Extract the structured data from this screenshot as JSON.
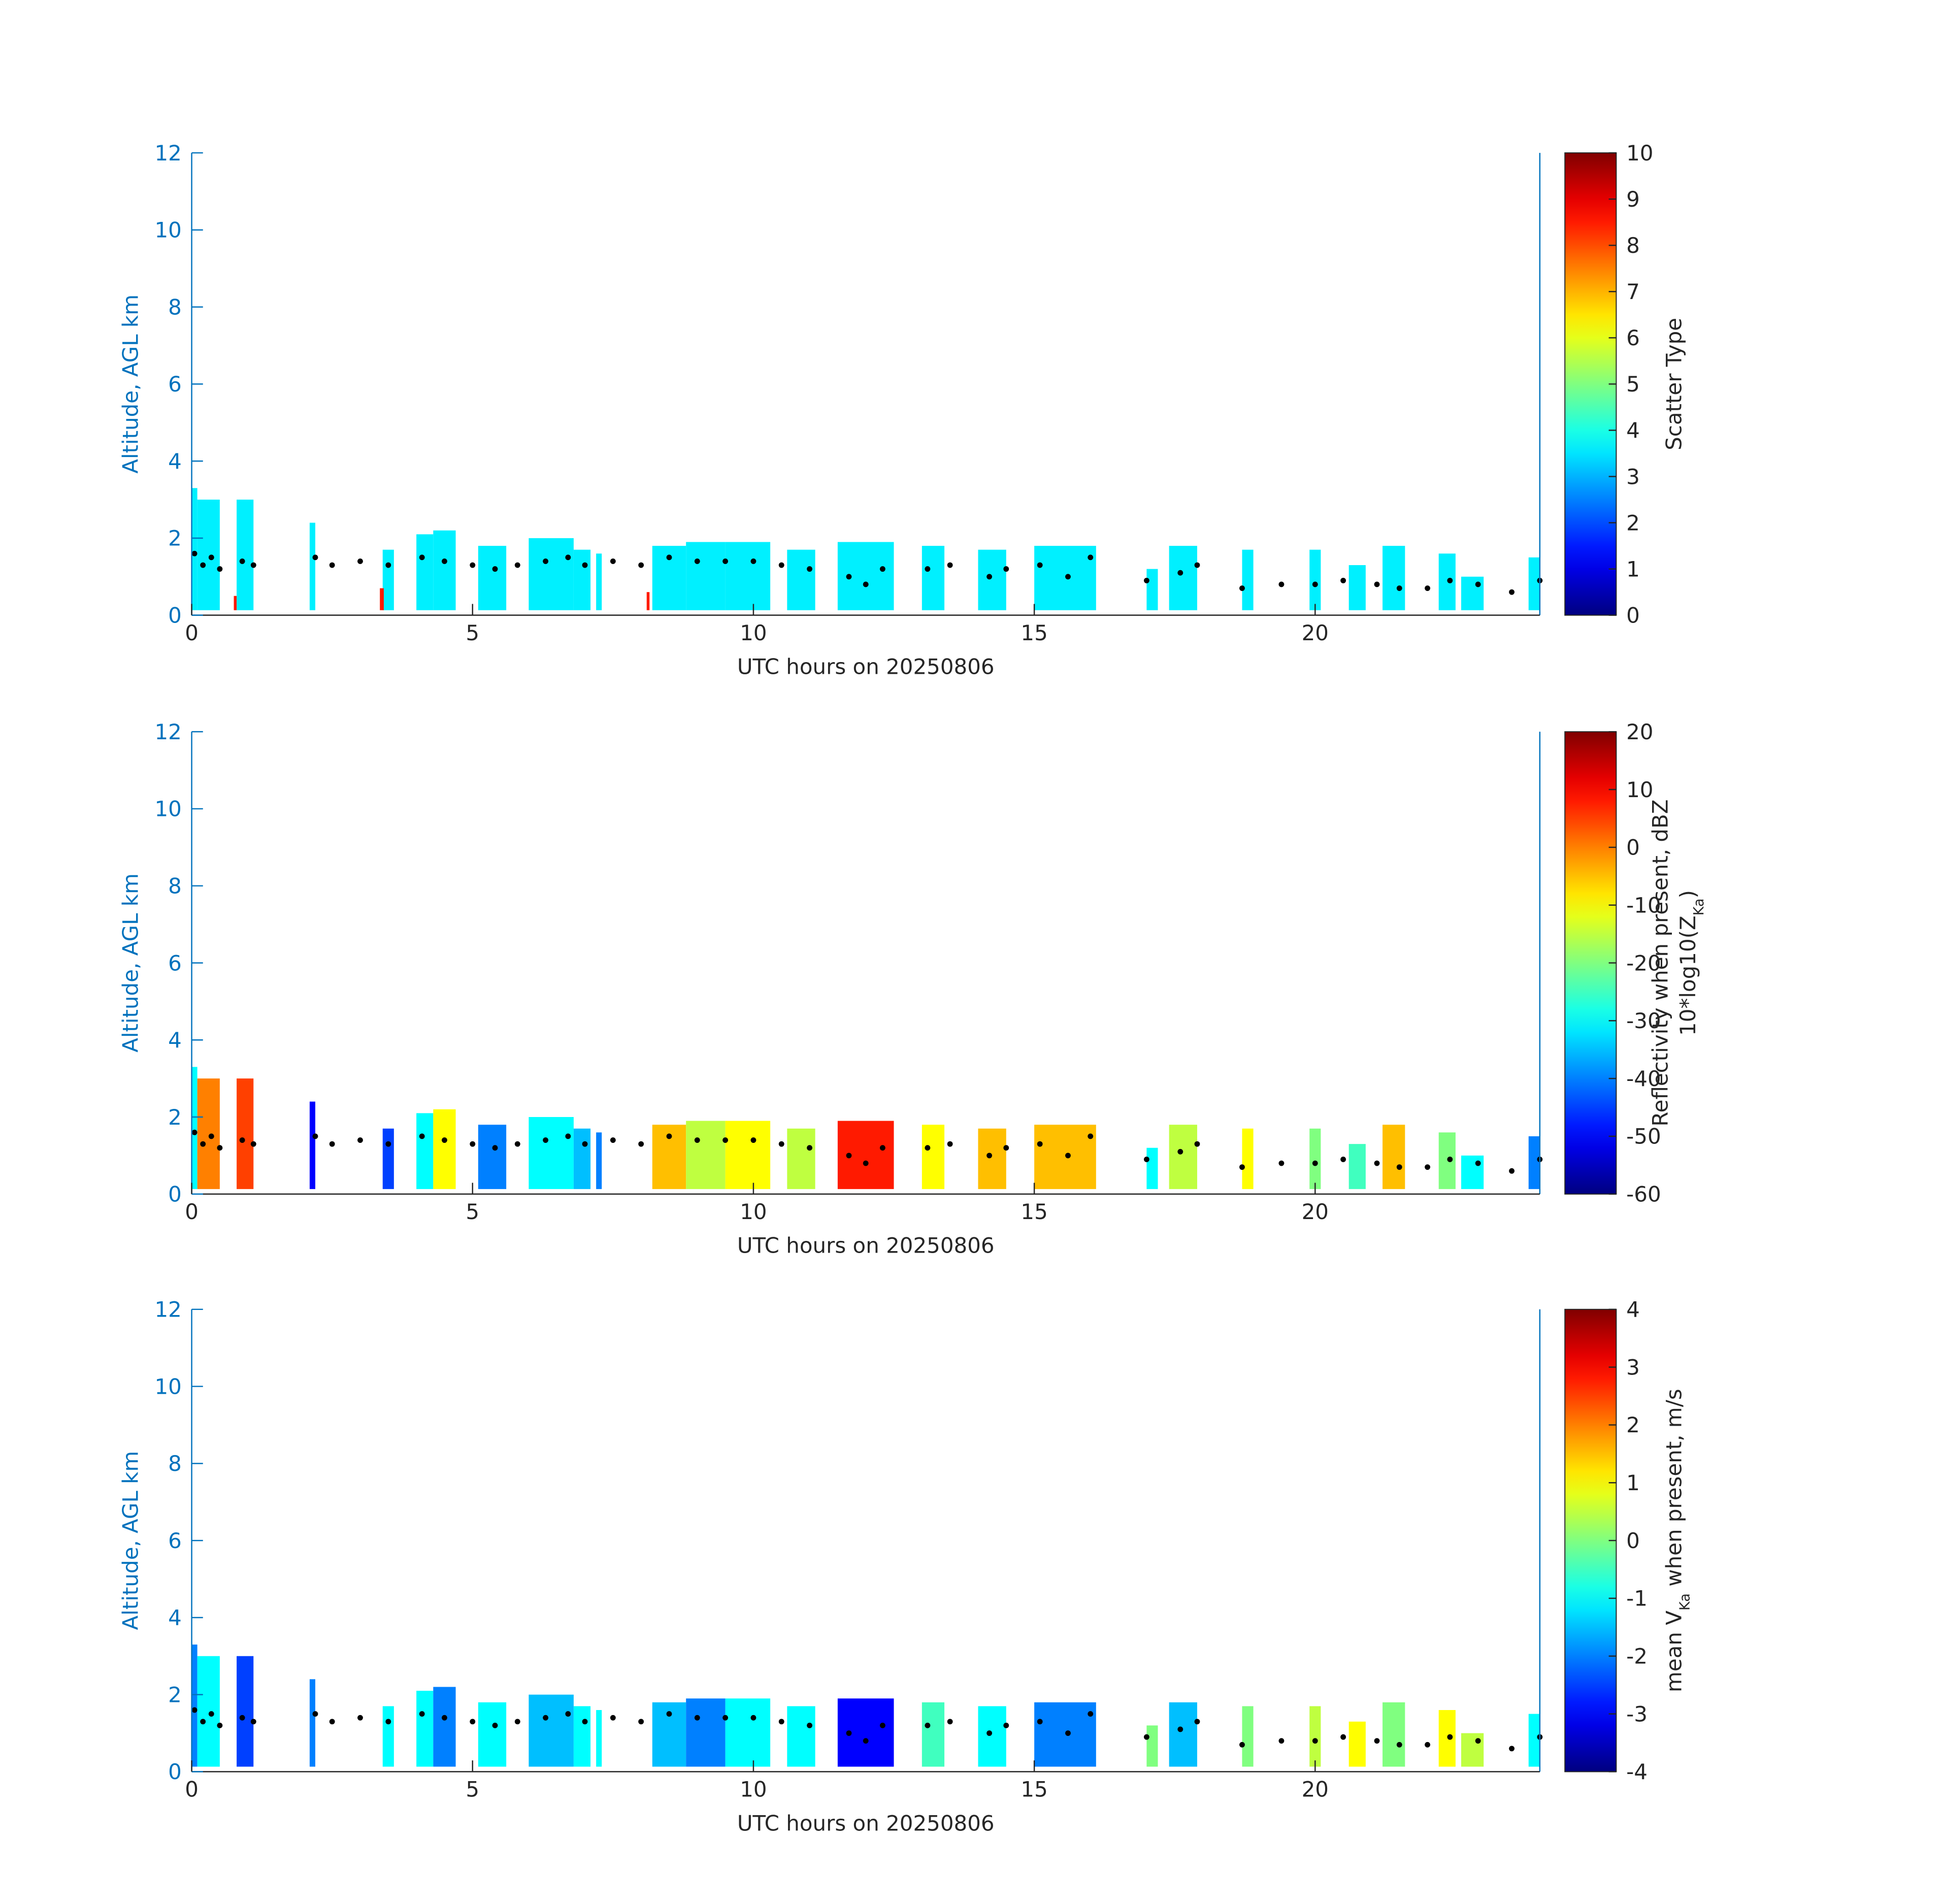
{
  "chart_data": [
    {
      "type": "curtain",
      "xlabel": "UTC hours on 20250806",
      "ylabel": "Altitude, AGL km",
      "xlim": [
        0,
        24
      ],
      "ylim": [
        0,
        12
      ],
      "xticks": [
        0,
        5,
        10,
        15,
        20
      ],
      "yticks": [
        0,
        2,
        4,
        6,
        8,
        10,
        12
      ],
      "colormap": "jet",
      "clim": [
        0,
        10
      ],
      "cticks": [
        0,
        1,
        2,
        3,
        4,
        5,
        6,
        7,
        8,
        9,
        10
      ],
      "colorbar_label": [
        [
          "Scatter Type"
        ]
      ],
      "echoes": {
        "x0": [
          0.0,
          0.1,
          0.8,
          2.1,
          3.4,
          4.0,
          4.3,
          5.1,
          6.0,
          6.8,
          7.2,
          8.2,
          8.8,
          9.5,
          10.6,
          11.5,
          13.0,
          14.0,
          15.0,
          17.0,
          17.4,
          18.7,
          19.9,
          20.6,
          21.2,
          22.2,
          22.6,
          23.8,
          0.75,
          3.35,
          8.1
        ],
        "x1": [
          0.1,
          0.5,
          1.1,
          2.2,
          3.6,
          4.3,
          4.7,
          5.6,
          6.8,
          7.1,
          7.3,
          8.8,
          9.5,
          10.3,
          11.1,
          12.5,
          13.4,
          14.5,
          16.1,
          17.2,
          17.9,
          18.9,
          20.1,
          20.9,
          21.6,
          22.5,
          23.0,
          24.0,
          0.8,
          3.42,
          8.15
        ],
        "top": [
          3.3,
          3.0,
          3.0,
          2.4,
          1.7,
          2.1,
          2.2,
          1.8,
          2.0,
          1.7,
          1.6,
          1.8,
          1.9,
          1.9,
          1.7,
          1.9,
          1.8,
          1.7,
          1.8,
          1.2,
          1.8,
          1.7,
          1.7,
          1.3,
          1.8,
          1.6,
          1.0,
          1.5,
          0.5,
          0.7,
          0.6
        ],
        "values": [
          3.6,
          3.6,
          3.6,
          3.6,
          3.6,
          3.6,
          3.6,
          3.6,
          3.6,
          3.6,
          3.6,
          3.6,
          3.6,
          3.6,
          3.6,
          3.6,
          3.6,
          3.6,
          3.6,
          3.6,
          3.6,
          3.6,
          3.6,
          3.6,
          3.6,
          3.6,
          3.6,
          3.6,
          8.5,
          8.5,
          8.5
        ]
      },
      "cloud_base": {
        "x": [
          0.05,
          0.2,
          0.35,
          0.5,
          0.9,
          1.1,
          2.2,
          2.5,
          3.0,
          3.5,
          4.1,
          4.5,
          5.0,
          5.4,
          5.8,
          6.3,
          6.7,
          7.0,
          7.5,
          8.0,
          8.5,
          9.0,
          9.5,
          10.0,
          10.5,
          11.0,
          11.7,
          12.0,
          12.3,
          13.1,
          13.5,
          14.2,
          14.5,
          15.1,
          15.6,
          16.0,
          17.0,
          17.6,
          17.9,
          18.7,
          19.4,
          20.0,
          20.5,
          21.1,
          21.5,
          22.0,
          22.4,
          22.9,
          23.5,
          24.0
        ],
        "y": [
          1.6,
          1.3,
          1.5,
          1.2,
          1.4,
          1.3,
          1.5,
          1.3,
          1.4,
          1.3,
          1.5,
          1.4,
          1.3,
          1.2,
          1.3,
          1.4,
          1.5,
          1.3,
          1.4,
          1.3,
          1.5,
          1.4,
          1.4,
          1.4,
          1.3,
          1.2,
          1.0,
          0.8,
          1.2,
          1.2,
          1.3,
          1.0,
          1.2,
          1.3,
          1.0,
          1.5,
          0.9,
          1.1,
          1.3,
          0.7,
          0.8,
          0.8,
          0.9,
          0.8,
          0.7,
          0.7,
          0.9,
          0.8,
          0.6,
          0.9
        ]
      }
    },
    {
      "type": "curtain",
      "xlabel": "UTC hours on 20250806",
      "ylabel": "Altitude, AGL km",
      "xlim": [
        0,
        24
      ],
      "ylim": [
        0,
        12
      ],
      "xticks": [
        0,
        5,
        10,
        15,
        20
      ],
      "yticks": [
        0,
        2,
        4,
        6,
        8,
        10,
        12
      ],
      "colormap": "jet",
      "clim": [
        -60,
        20
      ],
      "cticks": [
        -60,
        -50,
        -40,
        -30,
        -20,
        -10,
        0,
        10,
        20
      ],
      "colorbar_label": [
        [
          "Reflectivity when present, dBZ"
        ],
        [
          "10*log10(Z",
          "Ka",
          ")"
        ]
      ],
      "echoes": {
        "x0": [
          0.0,
          0.1,
          0.8,
          2.1,
          3.4,
          4.0,
          4.3,
          5.1,
          6.0,
          6.8,
          7.2,
          8.2,
          8.8,
          9.5,
          10.6,
          11.5,
          13.0,
          14.0,
          15.0,
          17.0,
          17.4,
          18.7,
          19.9,
          20.6,
          21.2,
          22.2,
          22.6,
          23.8
        ],
        "x1": [
          0.1,
          0.5,
          1.1,
          2.2,
          3.6,
          4.3,
          4.7,
          5.6,
          6.8,
          7.1,
          7.3,
          8.8,
          9.5,
          10.3,
          11.1,
          12.5,
          13.4,
          14.5,
          16.1,
          17.2,
          17.9,
          18.9,
          20.1,
          20.9,
          21.6,
          22.5,
          23.0,
          24.0
        ],
        "top": [
          3.3,
          3.0,
          3.0,
          2.4,
          1.7,
          2.1,
          2.2,
          1.8,
          2.0,
          1.7,
          1.6,
          1.8,
          1.9,
          1.9,
          1.7,
          1.9,
          1.8,
          1.7,
          1.8,
          1.2,
          1.8,
          1.7,
          1.7,
          1.3,
          1.8,
          1.6,
          1.0,
          1.5
        ],
        "values": [
          -30,
          0,
          5,
          -50,
          -45,
          -30,
          -10,
          -40,
          -30,
          -35,
          -40,
          -5,
          -15,
          -10,
          -15,
          8,
          -10,
          -5,
          -5,
          -30,
          -15,
          -10,
          -20,
          -25,
          -5,
          -20,
          -30,
          -40
        ]
      },
      "cloud_base": {
        "x": [
          0.05,
          0.2,
          0.35,
          0.5,
          0.9,
          1.1,
          2.2,
          2.5,
          3.0,
          3.5,
          4.1,
          4.5,
          5.0,
          5.4,
          5.8,
          6.3,
          6.7,
          7.0,
          7.5,
          8.0,
          8.5,
          9.0,
          9.5,
          10.0,
          10.5,
          11.0,
          11.7,
          12.0,
          12.3,
          13.1,
          13.5,
          14.2,
          14.5,
          15.1,
          15.6,
          16.0,
          17.0,
          17.6,
          17.9,
          18.7,
          19.4,
          20.0,
          20.5,
          21.1,
          21.5,
          22.0,
          22.4,
          22.9,
          23.5,
          24.0
        ],
        "y": [
          1.6,
          1.3,
          1.5,
          1.2,
          1.4,
          1.3,
          1.5,
          1.3,
          1.4,
          1.3,
          1.5,
          1.4,
          1.3,
          1.2,
          1.3,
          1.4,
          1.5,
          1.3,
          1.4,
          1.3,
          1.5,
          1.4,
          1.4,
          1.4,
          1.3,
          1.2,
          1.0,
          0.8,
          1.2,
          1.2,
          1.3,
          1.0,
          1.2,
          1.3,
          1.0,
          1.5,
          0.9,
          1.1,
          1.3,
          0.7,
          0.8,
          0.8,
          0.9,
          0.8,
          0.7,
          0.7,
          0.9,
          0.8,
          0.6,
          0.9
        ]
      }
    },
    {
      "type": "curtain",
      "xlabel": "UTC hours on 20250806",
      "ylabel": "Altitude, AGL km",
      "xlim": [
        0,
        24
      ],
      "ylim": [
        0,
        12
      ],
      "xticks": [
        0,
        5,
        10,
        15,
        20
      ],
      "yticks": [
        0,
        2,
        4,
        6,
        8,
        10,
        12
      ],
      "colormap": "jet",
      "clim": [
        -4,
        4
      ],
      "cticks": [
        -4,
        -3,
        -2,
        -1,
        0,
        1,
        2,
        3,
        4
      ],
      "colorbar_label": [
        [
          "mean V",
          "Ka",
          " when present, m/s"
        ]
      ],
      "echoes": {
        "x0": [
          0.0,
          0.1,
          0.8,
          2.1,
          3.4,
          4.0,
          4.3,
          5.1,
          6.0,
          6.8,
          7.2,
          8.2,
          8.8,
          9.5,
          10.6,
          11.5,
          13.0,
          14.0,
          15.0,
          17.0,
          17.4,
          18.7,
          19.9,
          20.6,
          21.2,
          22.2,
          22.6,
          23.8
        ],
        "x1": [
          0.1,
          0.5,
          1.1,
          2.2,
          3.6,
          4.3,
          4.7,
          5.6,
          6.8,
          7.1,
          7.3,
          8.8,
          9.5,
          10.3,
          11.1,
          12.5,
          13.4,
          14.5,
          16.1,
          17.2,
          17.9,
          18.9,
          20.1,
          20.9,
          21.6,
          22.5,
          23.0,
          24.0
        ],
        "top": [
          3.3,
          3.0,
          3.0,
          2.4,
          1.7,
          2.1,
          2.2,
          1.8,
          2.0,
          1.7,
          1.6,
          1.8,
          1.9,
          1.9,
          1.7,
          1.9,
          1.8,
          1.7,
          1.8,
          1.2,
          1.8,
          1.7,
          1.7,
          1.3,
          1.8,
          1.6,
          1.0,
          1.5
        ],
        "values": [
          -2,
          -1,
          -2.5,
          -2,
          -1,
          -1,
          -2,
          -1,
          -1.5,
          -1,
          -1,
          -1.5,
          -2,
          -1,
          -1,
          -3,
          -0.5,
          -1,
          -2,
          0,
          -1.5,
          0,
          0.5,
          1,
          0,
          1,
          0.5,
          -1
        ]
      },
      "cloud_base": {
        "x": [
          0.05,
          0.2,
          0.35,
          0.5,
          0.9,
          1.1,
          2.2,
          2.5,
          3.0,
          3.5,
          4.1,
          4.5,
          5.0,
          5.4,
          5.8,
          6.3,
          6.7,
          7.0,
          7.5,
          8.0,
          8.5,
          9.0,
          9.5,
          10.0,
          10.5,
          11.0,
          11.7,
          12.0,
          12.3,
          13.1,
          13.5,
          14.2,
          14.5,
          15.1,
          15.6,
          16.0,
          17.0,
          17.6,
          17.9,
          18.7,
          19.4,
          20.0,
          20.5,
          21.1,
          21.5,
          22.0,
          22.4,
          22.9,
          23.5,
          24.0
        ],
        "y": [
          1.6,
          1.3,
          1.5,
          1.2,
          1.4,
          1.3,
          1.5,
          1.3,
          1.4,
          1.3,
          1.5,
          1.4,
          1.3,
          1.2,
          1.3,
          1.4,
          1.5,
          1.3,
          1.4,
          1.3,
          1.5,
          1.4,
          1.4,
          1.4,
          1.3,
          1.2,
          1.0,
          0.8,
          1.2,
          1.2,
          1.3,
          1.0,
          1.2,
          1.3,
          1.0,
          1.5,
          0.9,
          1.1,
          1.3,
          0.7,
          0.8,
          0.8,
          0.9,
          0.8,
          0.7,
          0.7,
          0.9,
          0.8,
          0.6,
          0.9
        ]
      }
    }
  ]
}
